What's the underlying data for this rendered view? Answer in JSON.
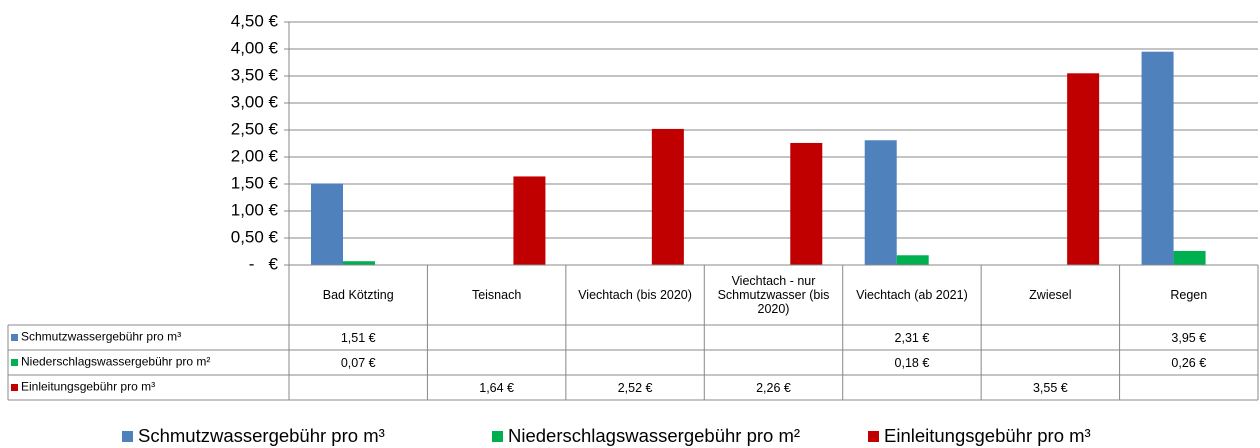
{
  "chart_data": {
    "type": "bar",
    "categories": [
      "Bad Kötzting",
      "Teisnach",
      "Viechtach (bis 2020)",
      "Viechtach - nur Schmutzwasser (bis 2020)",
      "Viechtach (ab 2021)",
      "Zwiesel",
      "Regen"
    ],
    "series": [
      {
        "name": "Schmutzwassergebühr pro m³",
        "color": "#4f81bd",
        "values": [
          1.51,
          null,
          null,
          null,
          2.31,
          null,
          3.95
        ],
        "value_labels": [
          "1,51 €",
          null,
          null,
          null,
          "2,31 €",
          null,
          "3,95 €"
        ]
      },
      {
        "name": "Niederschlagswassergebühr pro m²",
        "color": "#00b050",
        "values": [
          0.07,
          null,
          null,
          null,
          0.18,
          null,
          0.26
        ],
        "value_labels": [
          "0,07 €",
          null,
          null,
          null,
          "0,18 €",
          null,
          "0,26 €"
        ]
      },
      {
        "name": "Einleitungsgebühr pro m³",
        "color": "#c00000",
        "values": [
          null,
          1.64,
          2.52,
          2.26,
          null,
          3.55,
          null
        ],
        "value_labels": [
          null,
          "1,64 €",
          "2,52 €",
          "2,26 €",
          null,
          "3,55 €",
          null
        ]
      }
    ],
    "ylim": [
      0,
      4.5
    ],
    "yticks": [
      {
        "value": 0,
        "label": "-   €"
      },
      {
        "value": 0.5,
        "label": "0,50 €"
      },
      {
        "value": 1,
        "label": "1,00 €"
      },
      {
        "value": 1.5,
        "label": "1,50 €"
      },
      {
        "value": 2,
        "label": "2,00 €"
      },
      {
        "value": 2.5,
        "label": "2,50 €"
      },
      {
        "value": 3,
        "label": "3,00 €"
      },
      {
        "value": 3.5,
        "label": "3,50 €"
      },
      {
        "value": 4,
        "label": "4,00 €"
      },
      {
        "value": 4.5,
        "label": "4,50 €"
      }
    ],
    "grid": true,
    "legend": "bottom"
  }
}
